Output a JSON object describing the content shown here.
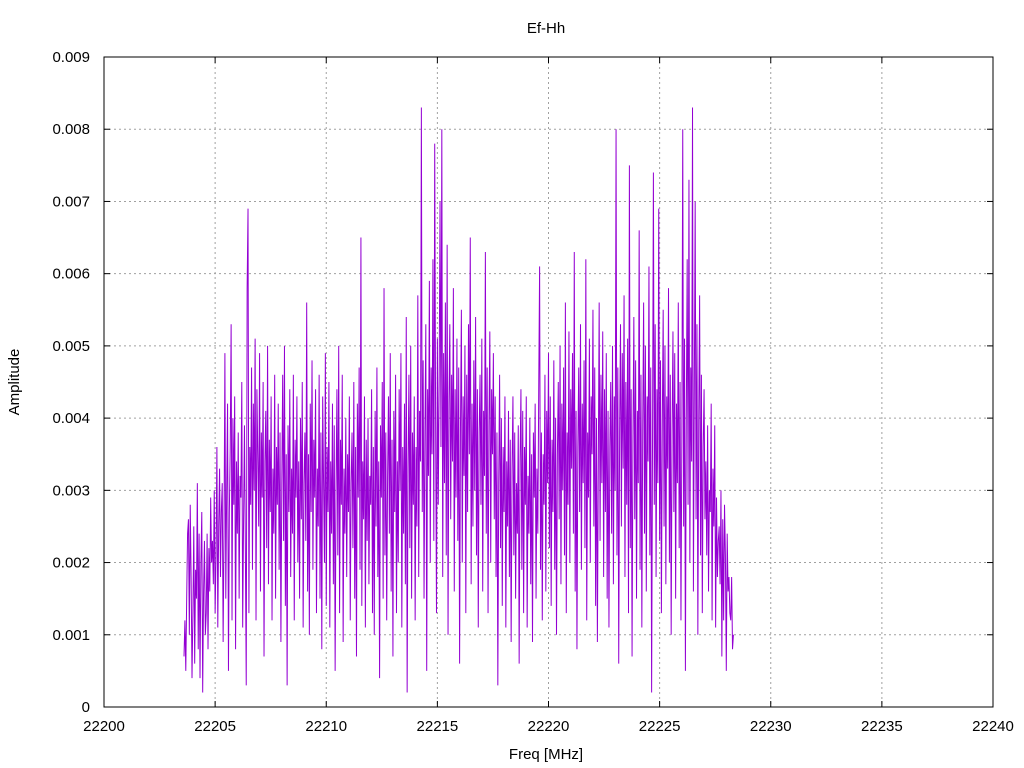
{
  "chart_data": {
    "type": "line",
    "title": "Ef-Hh",
    "xlabel": "Freq [MHz]",
    "ylabel": "Amplitude",
    "xlim": [
      22200,
      22240
    ],
    "ylim": [
      0,
      0.009
    ],
    "x_ticks": [
      "22200",
      "22205",
      "22210",
      "22215",
      "22220",
      "22225",
      "22230",
      "22235",
      "22240"
    ],
    "y_ticks": [
      "0",
      "0.001",
      "0.002",
      "0.003",
      "0.004",
      "0.005",
      "0.006",
      "0.007",
      "0.008",
      "0.009"
    ],
    "grid": true,
    "legend": "none",
    "series": [
      {
        "color": "#9400d3",
        "x_start": 22203.6,
        "x_step": 0.04,
        "values": [
          0.0007,
          0.0012,
          0.0005,
          0.0015,
          0.0024,
          0.0026,
          0.001,
          0.0028,
          0.0018,
          0.0004,
          0.0013,
          0.0025,
          0.0006,
          0.0019,
          0.0015,
          0.0031,
          0.0008,
          0.0024,
          0.0004,
          0.002,
          0.0027,
          0.0002,
          0.0016,
          0.0023,
          0.001,
          0.0013,
          0.0024,
          0.0008,
          0.0022,
          0.0016,
          0.0029,
          0.002,
          0.0023,
          0.0017,
          0.003,
          0.0013,
          0.0021,
          0.0036,
          0.0011,
          0.0025,
          0.0033,
          0.0018,
          0.0027,
          0.0031,
          0.0009,
          0.0024,
          0.0049,
          0.0015,
          0.003,
          0.0042,
          0.0005,
          0.0027,
          0.0036,
          0.0053,
          0.0012,
          0.004,
          0.0028,
          0.0043,
          0.0008,
          0.0034,
          0.0024,
          0.0038,
          0.0015,
          0.0032,
          0.0029,
          0.0045,
          0.0011,
          0.0026,
          0.0039,
          0.0022,
          0.0003,
          0.0058,
          0.0069,
          0.0013,
          0.0036,
          0.0028,
          0.0047,
          0.0019,
          0.0042,
          0.003,
          0.0051,
          0.0012,
          0.0044,
          0.0035,
          0.0025,
          0.0049,
          0.0016,
          0.0038,
          0.0029,
          0.0045,
          0.0007,
          0.0034,
          0.0041,
          0.0022,
          0.005,
          0.0017,
          0.0037,
          0.0027,
          0.0043,
          0.0012,
          0.0033,
          0.0024,
          0.0046,
          0.0015,
          0.0036,
          0.0028,
          0.0042,
          0.0019,
          0.0038,
          0.0009,
          0.0031,
          0.0046,
          0.0023,
          0.005,
          0.0014,
          0.0035,
          0.0003,
          0.0039,
          0.0027,
          0.0044,
          0.0018,
          0.0033,
          0.0024,
          0.0046,
          0.0012,
          0.0037,
          0.0029,
          0.0043,
          0.002,
          0.0034,
          0.0015,
          0.004,
          0.0026,
          0.0045,
          0.0011,
          0.0031,
          0.0038,
          0.0023,
          0.0056,
          0.0016,
          0.0035,
          0.001,
          0.0042,
          0.0027,
          0.0048,
          0.0019,
          0.0037,
          0.0029,
          0.0044,
          0.0013,
          0.0033,
          0.0025,
          0.0046,
          0.0015,
          0.0038,
          0.0008,
          0.0043,
          0.0031,
          0.002,
          0.0049,
          0.0014,
          0.0036,
          0.0027,
          0.0045,
          0.0011,
          0.0034,
          0.0024,
          0.0042,
          0.0017,
          0.0039,
          0.0005,
          0.003,
          0.0044,
          0.0021,
          0.005,
          0.0013,
          0.0037,
          0.0028,
          0.0046,
          0.0009,
          0.0033,
          0.0024,
          0.004,
          0.0018,
          0.0035,
          0.0027,
          0.0043,
          0.0012,
          0.0031,
          0.0038,
          0.0022,
          0.0045,
          0.0015,
          0.0036,
          0.0007,
          0.0042,
          0.0029,
          0.0047,
          0.0019,
          0.0065,
          0.0014,
          0.0034,
          0.0026,
          0.0043,
          0.0011,
          0.0037,
          0.0023,
          0.004,
          0.0017,
          0.0032,
          0.0028,
          0.0044,
          0.0013,
          0.0036,
          0.001,
          0.0041,
          0.0025,
          0.0047,
          0.0018,
          0.0034,
          0.0004,
          0.0039,
          0.0029,
          0.0045,
          0.0015,
          0.0058,
          0.0021,
          0.0038,
          0.0012,
          0.0032,
          0.0043,
          0.0024,
          0.0049,
          0.0016,
          0.0037,
          0.0007,
          0.0041,
          0.0027,
          0.0046,
          0.0013,
          0.0034,
          0.002,
          0.0044,
          0.003,
          0.0049,
          0.0011,
          0.0036,
          0.0024,
          0.0042,
          0.0017,
          0.0054,
          0.0002,
          0.0033,
          0.0046,
          0.0022,
          0.005,
          0.0015,
          0.0038,
          0.0028,
          0.0043,
          0.0012,
          0.0036,
          0.0025,
          0.0057,
          0.0018,
          0.0041,
          0.0034,
          0.0083,
          0.0027,
          0.0048,
          0.0015,
          0.0038,
          0.0053,
          0.0005,
          0.0044,
          0.0032,
          0.0059,
          0.002,
          0.0047,
          0.0035,
          0.0062,
          0.0023,
          0.0078,
          0.004,
          0.0013,
          0.0051,
          0.0028,
          0.0045,
          0.007,
          0.0036,
          0.008,
          0.0018,
          0.0049,
          0.0031,
          0.0056,
          0.0021,
          0.0064,
          0.001,
          0.0042,
          0.0053,
          0.0026,
          0.0046,
          0.0034,
          0.0058,
          0.0016,
          0.0044,
          0.0029,
          0.0051,
          0.0023,
          0.0047,
          0.0006,
          0.0039,
          0.0055,
          0.002,
          0.0043,
          0.0032,
          0.005,
          0.0013,
          0.0046,
          0.0027,
          0.0053,
          0.0035,
          0.0065,
          0.0017,
          0.0042,
          0.0025,
          0.0048,
          0.003,
          0.0054,
          0.0021,
          0.0044,
          0.0011,
          0.0038,
          0.0046,
          0.0028,
          0.0051,
          0.0016,
          0.0041,
          0.0032,
          0.0063,
          0.0024,
          0.0047,
          0.0013,
          0.0039,
          0.0052,
          0.002,
          0.0044,
          0.0035,
          0.0049,
          0.0026,
          0.0043,
          0.0018,
          0.0038,
          0.0003,
          0.0031,
          0.0046,
          0.0022,
          0.004,
          0.0014,
          0.0036,
          0.0027,
          0.0043,
          0.0011,
          0.0034,
          0.0025,
          0.0041,
          0.0018,
          0.0037,
          0.0009,
          0.0033,
          0.0043,
          0.0021,
          0.0038,
          0.0015,
          0.0031,
          0.0024,
          0.0039,
          0.0006,
          0.0034,
          0.0044,
          0.0019,
          0.0041,
          0.0013,
          0.0036,
          0.0028,
          0.0043,
          0.0011,
          0.0032,
          0.0024,
          0.004,
          0.0017,
          0.0035,
          0.0009,
          0.0038,
          0.0029,
          0.0042,
          0.0015,
          0.0033,
          0.0024,
          0.0044,
          0.0061,
          0.0019,
          0.0038,
          0.0012,
          0.0035,
          0.0028,
          0.0046,
          0.0016,
          0.0041,
          0.0031,
          0.0049,
          0.0022,
          0.0043,
          0.0014,
          0.0037,
          0.0027,
          0.0048,
          0.0019,
          0.004,
          0.001,
          0.0035,
          0.0045,
          0.0026,
          0.005,
          0.0017,
          0.0042,
          0.003,
          0.0047,
          0.0021,
          0.0056,
          0.0013,
          0.0038,
          0.0028,
          0.0052,
          0.002,
          0.0044,
          0.0033,
          0.0049,
          0.0024,
          0.0063,
          0.0016,
          0.0041,
          0.0008,
          0.0036,
          0.0047,
          0.0027,
          0.0053,
          0.0019,
          0.0042,
          0.0031,
          0.0048,
          0.0022,
          0.0062,
          0.0012,
          0.0038,
          0.0029,
          0.0051,
          0.002,
          0.0043,
          0.0035,
          0.0055,
          0.0025,
          0.0047,
          0.0014,
          0.004,
          0.0009,
          0.0033,
          0.0056,
          0.0023,
          0.0046,
          0.0031,
          0.0052,
          0.0018,
          0.0044,
          0.0027,
          0.0049,
          0.0015,
          0.0041,
          0.0011,
          0.0036,
          0.0045,
          0.0024,
          0.005,
          0.0017,
          0.0043,
          0.003,
          0.008,
          0.0021,
          0.0047,
          0.0006,
          0.0038,
          0.0053,
          0.0025,
          0.0049,
          0.0033,
          0.0057,
          0.0018,
          0.0045,
          0.0028,
          0.0051,
          0.0013,
          0.0075,
          0.0022,
          0.0044,
          0.0007,
          0.0037,
          0.0054,
          0.0026,
          0.0048,
          0.0015,
          0.0041,
          0.0031,
          0.0066,
          0.0019,
          0.0046,
          0.0011,
          0.0039,
          0.0056,
          0.0024,
          0.005,
          0.0016,
          0.0043,
          0.0034,
          0.0061,
          0.0021,
          0.0047,
          0.0002,
          0.0036,
          0.0074,
          0.0028,
          0.0053,
          0.0018,
          0.0044,
          0.0031,
          0.0069,
          0.0023,
          0.0048,
          0.0013,
          0.0039,
          0.0055,
          0.0025,
          0.005,
          0.0017,
          0.0043,
          0.0033,
          0.0058,
          0.002,
          0.0046,
          0.001,
          0.0038,
          0.0052,
          0.0027,
          0.0049,
          0.0015,
          0.0042,
          0.0031,
          0.0056,
          0.0022,
          0.0045,
          0.0012,
          0.0037,
          0.008,
          0.0025,
          0.0051,
          0.0005,
          0.004,
          0.0062,
          0.0028,
          0.0073,
          0.002,
          0.0047,
          0.0034,
          0.0083,
          0.0016,
          0.0043,
          0.007,
          0.0026,
          0.0053,
          0.001,
          0.004,
          0.0057,
          0.0021,
          0.0046,
          0.0013,
          0.0036,
          0.0044,
          0.0026,
          0.0034,
          0.0021,
          0.0039,
          0.0016,
          0.003,
          0.0027,
          0.0042,
          0.0012,
          0.0033,
          0.0025,
          0.0039,
          0.0011,
          0.0029,
          0.0018,
          0.0023,
          0.0025,
          0.0017,
          0.003,
          0.0007,
          0.0026,
          0.0012,
          0.0028,
          0.0021,
          0.0005,
          0.0024,
          0.0016,
          0.0018,
          0.0013,
          0.0012,
          0.0018,
          0.0008,
          0.001
        ]
      }
    ]
  }
}
